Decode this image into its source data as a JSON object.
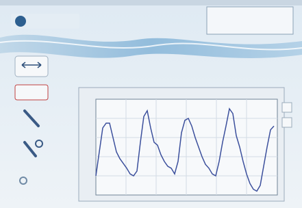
{
  "chart_data": {
    "type": "line",
    "color": "#3b4f9c",
    "ylim": [
      0,
      100
    ],
    "values": [
      20,
      45,
      70,
      75,
      75,
      60,
      45,
      38,
      33,
      28,
      22,
      20,
      25,
      55,
      82,
      88,
      70,
      55,
      52,
      42,
      35,
      30,
      28,
      22,
      35,
      65,
      78,
      80,
      72,
      60,
      50,
      40,
      32,
      28,
      22,
      20,
      35,
      55,
      72,
      90,
      85,
      62,
      50,
      35,
      22,
      12,
      6,
      4,
      10,
      30,
      50,
      68,
      72
    ]
  }
}
